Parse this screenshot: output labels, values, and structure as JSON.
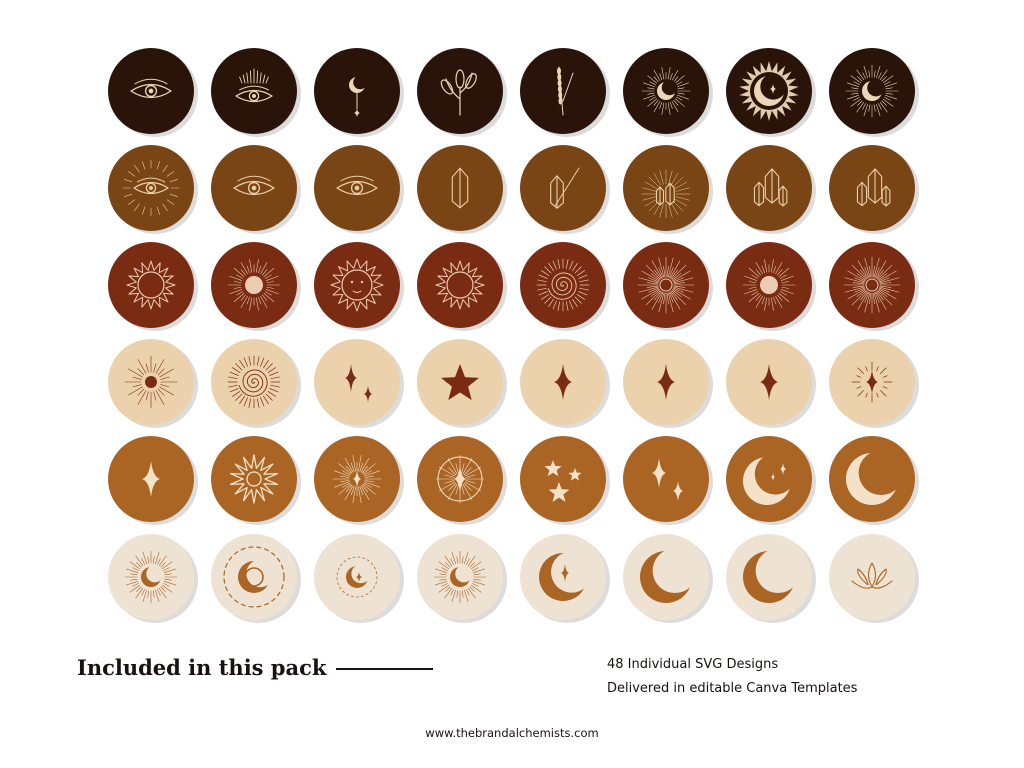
{
  "palette": {
    "row_colors": [
      "#2a1309",
      "#7a4515",
      "#7a2c13",
      "#ecd1ad",
      "#aa6424",
      "#eee3d3"
    ],
    "line_colors": [
      "#ecd6b8",
      "#e9cfa8",
      "#eccbb3",
      "#7a2c13",
      "#f4e2c8",
      "#aa6424"
    ],
    "shadow": "#dcdcdc"
  },
  "rows": [
    {
      "row": "dark-brown",
      "icons": [
        "eye-icon",
        "crowned-eye-icon",
        "hanging-moon-icon",
        "leafy-branch-icon",
        "lavender-sprig-icon",
        "sunburst-moon-icon",
        "sun-moon-icon",
        "radiant-crescent-icon"
      ]
    },
    {
      "row": "caramel",
      "icons": [
        "radiant-eye-icon",
        "eye-icon",
        "eye-icon",
        "crystal-icon",
        "crystal-sprig-icon",
        "radiant-crystals-icon",
        "crystal-cluster-icon",
        "crystal-cluster-icon"
      ]
    },
    {
      "row": "rust",
      "icons": [
        "sun-icon",
        "radiant-sun-icon",
        "sun-face-icon",
        "sun-icon",
        "spiral-sun-icon",
        "sunburst-icon",
        "radiant-sun-icon",
        "sunburst-icon"
      ]
    },
    {
      "row": "beige",
      "icons": [
        "sun-dot-icon",
        "spiral-sun-icon",
        "twin-stars-icon",
        "star-icon",
        "sparkle-icon",
        "sparkle-icon",
        "sparkle-icon",
        "radiant-sparkle-icon"
      ]
    },
    {
      "row": "ochre",
      "icons": [
        "sparkle-icon",
        "starburst-icon",
        "sparkle-burst-icon",
        "compass-star-icon",
        "three-stars-icon",
        "twin-sparkles-icon",
        "crescent-stars-icon",
        "crescent-icon"
      ]
    },
    {
      "row": "cream",
      "icons": [
        "radiant-crescent-icon",
        "orbit-crescent-icon",
        "moon-star-icon",
        "radiant-crescent-icon",
        "crescent-star-icon",
        "crescent-icon",
        "crescent-icon",
        "lotus-icon"
      ]
    }
  ],
  "footer": {
    "title": "Included in this pack",
    "features": [
      "48 Individual SVG Designs",
      "Delivered in editable Canva Templates"
    ],
    "website": "www.thebrandalchemists.com"
  }
}
